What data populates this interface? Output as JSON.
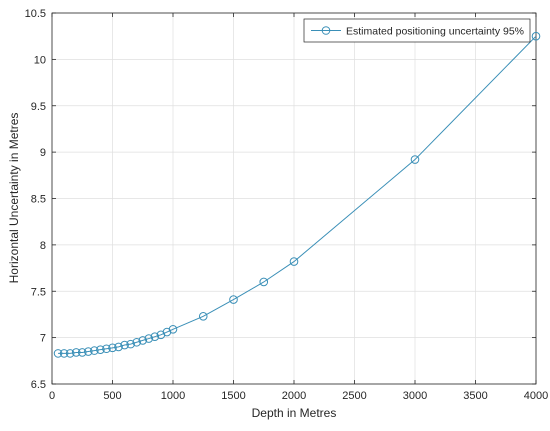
{
  "chart_data": {
    "type": "line",
    "xlabel": "Depth in Metres",
    "ylabel": "Horizontal Uncertainty in Metres",
    "xlim": [
      0,
      4000
    ],
    "ylim": [
      6.5,
      10.5
    ],
    "xticks": [
      0,
      500,
      1000,
      1500,
      2000,
      2500,
      3000,
      3500,
      4000
    ],
    "yticks": [
      6.5,
      7,
      7.5,
      8,
      8.5,
      9,
      9.5,
      10,
      10.5
    ],
    "grid": true,
    "legend_position": "top-right",
    "series": [
      {
        "name": "Estimated positioning uncertainty 95%",
        "color": "#3a8fb7",
        "marker": "circle",
        "x": [
          50,
          100,
          150,
          200,
          250,
          300,
          350,
          400,
          450,
          500,
          550,
          600,
          650,
          700,
          750,
          800,
          850,
          900,
          950,
          1000,
          1250,
          1500,
          1750,
          2000,
          3000,
          4000
        ],
        "y": [
          6.83,
          6.83,
          6.83,
          6.84,
          6.84,
          6.85,
          6.86,
          6.87,
          6.88,
          6.89,
          6.9,
          6.92,
          6.93,
          6.95,
          6.97,
          6.99,
          7.01,
          7.03,
          7.06,
          7.09,
          7.23,
          7.41,
          7.6,
          7.82,
          8.92,
          10.25
        ]
      }
    ]
  }
}
